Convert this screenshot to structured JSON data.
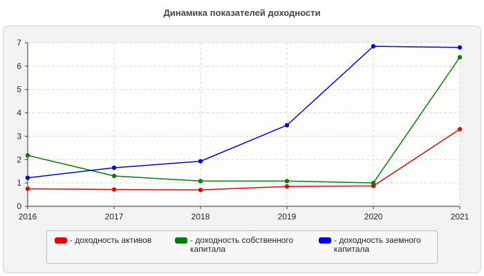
{
  "chart_data": {
    "type": "line",
    "title": "Динамика показателей доходности",
    "x": [
      "2016",
      "2017",
      "2018",
      "2019",
      "2020",
      "2021"
    ],
    "ylim": [
      0,
      7
    ],
    "yticks": [
      "0",
      "1",
      "2",
      "3",
      "4",
      "5",
      "6",
      "7"
    ],
    "grid": true,
    "legend_position": "bottom",
    "series": [
      {
        "name": "- доходность активов",
        "color": "#ee0000",
        "values": [
          0.75,
          0.72,
          0.7,
          0.85,
          0.87,
          3.3
        ]
      },
      {
        "name": "- доходность собственного капитала",
        "color": "#008000",
        "values": [
          2.18,
          1.3,
          1.08,
          1.08,
          1.0,
          6.38
        ]
      },
      {
        "name": "- доходность заемного капитала",
        "color": "#0000ee",
        "values": [
          1.22,
          1.65,
          1.93,
          3.47,
          6.85,
          6.8
        ]
      }
    ]
  }
}
